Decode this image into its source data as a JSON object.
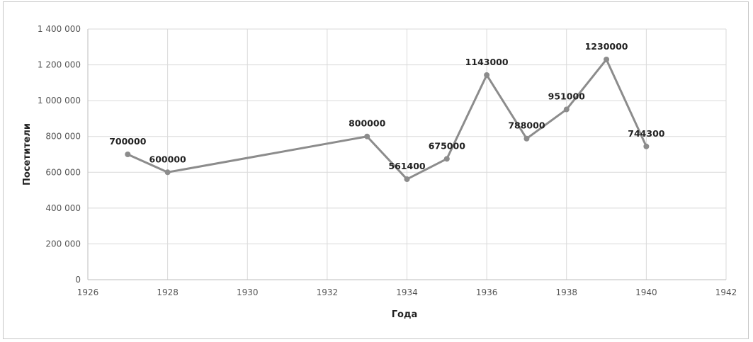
{
  "chart_data": {
    "type": "line",
    "title": "",
    "xlabel": "Года",
    "ylabel": "Посетители",
    "xlim": [
      1926,
      1942
    ],
    "ylim": [
      0,
      1400000
    ],
    "x_ticks": [
      1926,
      1928,
      1930,
      1932,
      1934,
      1936,
      1938,
      1940,
      1942
    ],
    "y_ticks": [
      0,
      200000,
      400000,
      600000,
      800000,
      1000000,
      1200000,
      1400000
    ],
    "y_tick_labels": [
      "0",
      "200 000",
      "400 000",
      "600 000",
      "800 000",
      "1 000 000",
      "1 200 000",
      "1 400 000"
    ],
    "grid": true,
    "line_color": "#8c8c8c",
    "series": [
      {
        "x": [
          1927,
          1928,
          1933,
          1934,
          1935,
          1936,
          1937,
          1938,
          1939,
          1940
        ],
        "values": [
          700000,
          600000,
          800000,
          561400,
          675000,
          1143000,
          788000,
          951000,
          1230000,
          744300
        ],
        "labels": [
          "700000",
          "600000",
          "800000",
          "561400",
          "675000",
          "1143000",
          "788000",
          "951000",
          "1230000",
          "744300"
        ]
      }
    ]
  }
}
